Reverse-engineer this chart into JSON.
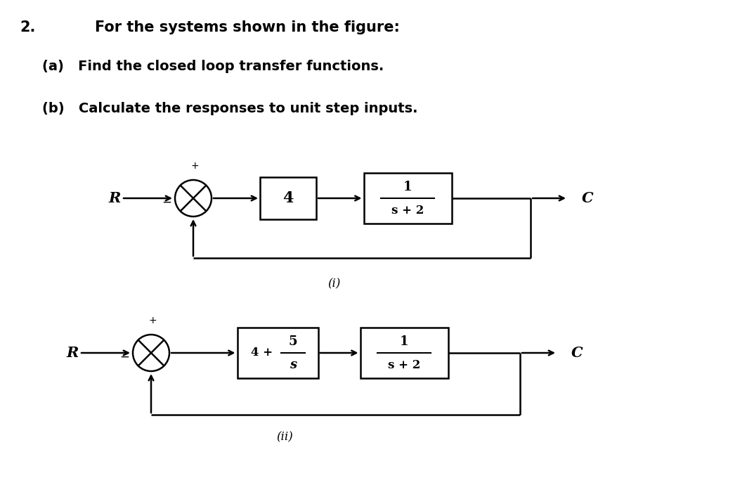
{
  "bg_color": "#ffffff",
  "title_num": "2.",
  "title_text": "For the systems shown in the figure:",
  "part_a": "(a)   Find the closed loop transfer functions.",
  "part_b": "(b)   Calculate the responses to unit step inputs.",
  "diagram1_label": "(i)",
  "diagram2_label": "(ii)",
  "sys1_R": "R",
  "sys1_C": "C",
  "sys1_b1": "4",
  "sys1_b2_num": "1",
  "sys1_b2_den": "s + 2",
  "sys2_R": "R",
  "sys2_C": "C",
  "sys2_b1_pre": "4 + ",
  "sys2_b1_frac_num": "5",
  "sys2_b1_frac_den": "s",
  "sys2_b2_num": "1",
  "sys2_b2_den": "s + 2",
  "fig_w": 10.63,
  "fig_h": 7.07,
  "dpi": 100
}
